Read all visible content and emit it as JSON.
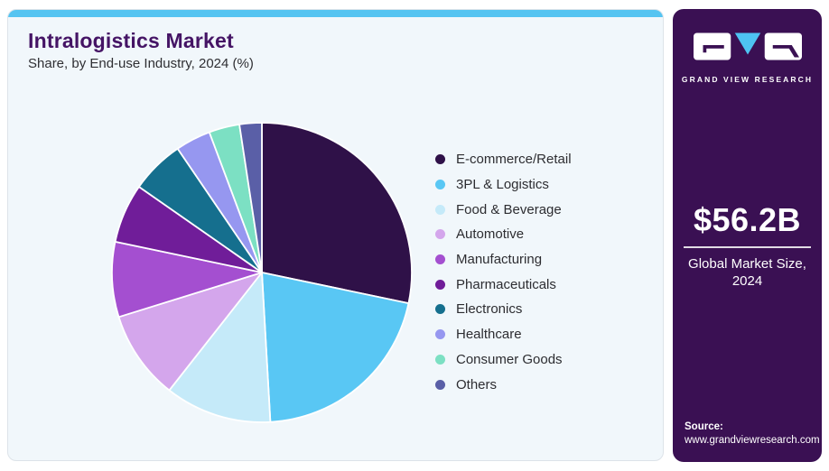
{
  "header": {
    "title": "Intralogistics Market",
    "subtitle": "Share, by End-use Industry, 2024 (%)"
  },
  "chart_data": {
    "type": "pie",
    "title": "Intralogistics Market Share, by End-use Industry, 2024 (%)",
    "unit": "%",
    "start_angle_deg": 0,
    "direction": "clockwise",
    "legend_position": "right",
    "segments": [
      {
        "label": "E-commerce/Retail",
        "value": 28.3,
        "color": "#2F1148"
      },
      {
        "label": "3PL & Logistics",
        "value": 20.8,
        "color": "#59C7F4"
      },
      {
        "label": "Food & Beverage",
        "value": 11.5,
        "color": "#C5EAF9"
      },
      {
        "label": "Automotive",
        "value": 9.6,
        "color": "#D4A6EC"
      },
      {
        "label": "Manufacturing",
        "value": 8.1,
        "color": "#A44FD0"
      },
      {
        "label": "Pharmaceuticals",
        "value": 6.4,
        "color": "#701D99"
      },
      {
        "label": "Electronics",
        "value": 5.8,
        "color": "#156F8E"
      },
      {
        "label": "Healthcare",
        "value": 3.8,
        "color": "#9697F0"
      },
      {
        "label": "Consumer Goods",
        "value": 3.3,
        "color": "#7CE0C3"
      },
      {
        "label": "Others",
        "value": 2.4,
        "color": "#5A5FA7"
      }
    ]
  },
  "sidebar": {
    "brand_name": "GRAND VIEW RESEARCH",
    "market_size_value": "$56.2B",
    "market_size_caption": "Global Market Size, 2024",
    "source_label": "Source:",
    "source_url": "www.grandviewresearch.com"
  },
  "colors": {
    "accent_blue": "#55C4F1",
    "sidebar_purple": "#3A1053",
    "title_purple": "#451465",
    "card_background": "#F1F7FB",
    "slice_separator": "#FFFFFF",
    "logo_block_white": "#FFFFFF",
    "logo_triangle_blue": "#4EC3F2"
  }
}
